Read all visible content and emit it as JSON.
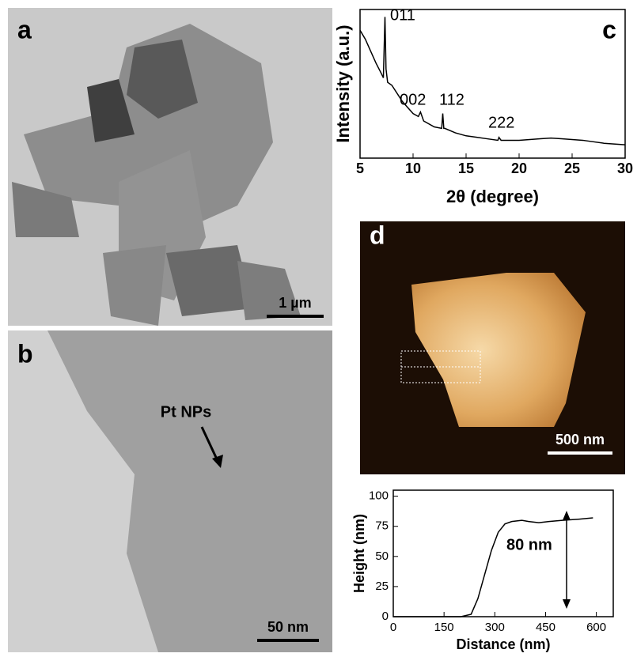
{
  "images": [
    {
      "label": "a",
      "scale_bar": "1 µm"
    },
    {
      "label": "b",
      "annotation": "Pt NPs",
      "scale_bar": "50 nm"
    },
    {
      "label": "d",
      "scale_bar": "500 nm"
    }
  ],
  "chart_data": [
    {
      "type": "line",
      "label": "c",
      "x_label": "2θ (degree)",
      "y_label": "Intensity (a.u.)",
      "x": [
        5,
        5.5,
        6,
        6.5,
        7,
        7.2,
        7.35,
        7.45,
        7.6,
        8,
        9,
        10,
        10.5,
        10.7,
        11,
        12,
        12.7,
        12.8,
        12.9,
        13,
        14,
        15,
        16,
        17,
        18,
        18.1,
        18.3,
        19,
        20,
        22,
        23,
        24,
        26,
        28,
        30
      ],
      "series": [
        {
          "color": "#000000",
          "values": [
            86,
            80,
            72,
            64,
            57,
            54,
            95,
            60,
            51,
            49,
            38,
            30,
            28,
            31,
            25,
            21,
            20,
            30,
            20,
            20,
            17,
            15,
            14,
            13,
            12,
            14,
            12,
            12,
            12,
            13,
            13.5,
            13,
            12,
            10,
            9
          ]
        }
      ],
      "xlim": [
        5,
        30
      ],
      "xticks": [
        5,
        10,
        15,
        20,
        25,
        30
      ],
      "ylim": [
        0,
        100
      ],
      "annotations": [
        "011",
        "002",
        "112",
        "222"
      ]
    },
    {
      "type": "line",
      "x_label": "Distance (nm)",
      "y_label": "Height (nm)",
      "x": [
        0,
        50,
        100,
        150,
        200,
        230,
        250,
        270,
        290,
        310,
        330,
        350,
        380,
        400,
        430,
        460,
        500,
        550,
        590
      ],
      "series": [
        {
          "color": "#000000",
          "values": [
            0,
            0,
            0,
            0,
            0,
            2,
            15,
            35,
            55,
            70,
            77,
            79,
            80,
            79,
            78,
            79,
            80,
            81,
            82
          ]
        }
      ],
      "xlim": [
        0,
        650
      ],
      "xticks": [
        0,
        150,
        300,
        450,
        600
      ],
      "ylim": [
        0,
        105
      ],
      "yticks": [
        0,
        25,
        50,
        75,
        100
      ],
      "annotations": [
        "80 nm"
      ]
    }
  ]
}
